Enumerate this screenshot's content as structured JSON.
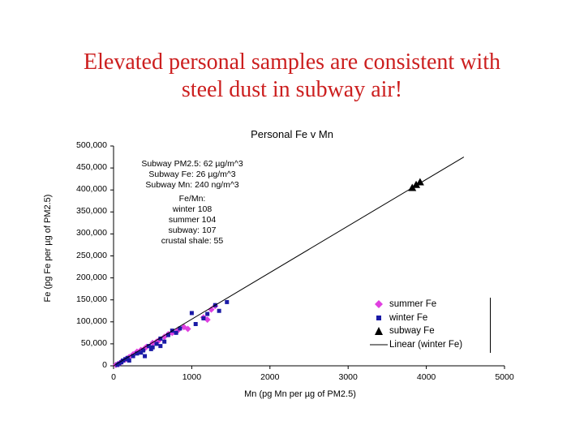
{
  "slide": {
    "title_line1": "Elevated personal samples are consistent with",
    "title_line2": "steel dust in subway air!"
  },
  "chart_data": {
    "type": "scatter",
    "title": "Personal Fe v Mn",
    "xlabel": "Mn (pg Mn per µg of PM2.5)",
    "ylabel": "Fe (pg Fe per µg of PM2.5)",
    "xlim": [
      0,
      5000
    ],
    "ylim": [
      0,
      500000
    ],
    "x_ticks": [
      "0",
      "1000",
      "2000",
      "3000",
      "4000",
      "5000"
    ],
    "y_ticks": [
      "0",
      "50,000",
      "100,000",
      "150,000",
      "200,000",
      "250,000",
      "300,000",
      "350,000",
      "400,000",
      "450,000",
      "500,000"
    ],
    "grid": false,
    "series": [
      {
        "name": "summer Fe",
        "marker": "diamond",
        "color": "#e040e0",
        "points": [
          [
            30,
            2000
          ],
          [
            60,
            4000
          ],
          [
            80,
            6000
          ],
          [
            100,
            9000
          ],
          [
            150,
            14000
          ],
          [
            200,
            20000
          ],
          [
            250,
            26000
          ],
          [
            300,
            32000
          ],
          [
            350,
            36000
          ],
          [
            420,
            43000
          ],
          [
            500,
            52000
          ],
          [
            580,
            58000
          ],
          [
            650,
            66000
          ],
          [
            750,
            75000
          ],
          [
            820,
            80000
          ],
          [
            900,
            88000
          ],
          [
            950,
            84000
          ],
          [
            1150,
            110000
          ],
          [
            1200,
            105000
          ],
          [
            1250,
            128000
          ],
          [
            1300,
            136000
          ],
          [
            400,
            40000
          ],
          [
            700,
            72000
          ],
          [
            550,
            55000
          ]
        ]
      },
      {
        "name": "winter Fe",
        "marker": "square",
        "color": "#1a1aa6",
        "points": [
          [
            50,
            2000
          ],
          [
            70,
            5000
          ],
          [
            100,
            8000
          ],
          [
            120,
            12000
          ],
          [
            150,
            15000
          ],
          [
            180,
            18000
          ],
          [
            200,
            12000
          ],
          [
            250,
            22000
          ],
          [
            300,
            28000
          ],
          [
            380,
            35000
          ],
          [
            400,
            22000
          ],
          [
            450,
            45000
          ],
          [
            500,
            42000
          ],
          [
            550,
            50000
          ],
          [
            600,
            62000
          ],
          [
            650,
            55000
          ],
          [
            700,
            70000
          ],
          [
            750,
            80000
          ],
          [
            800,
            75000
          ],
          [
            850,
            85000
          ],
          [
            1000,
            120000
          ],
          [
            1050,
            95000
          ],
          [
            1150,
            108000
          ],
          [
            1200,
            118000
          ],
          [
            1350,
            125000
          ],
          [
            1300,
            138000
          ],
          [
            1450,
            145000
          ],
          [
            600,
            45000
          ],
          [
            350,
            30000
          ],
          [
            480,
            38000
          ]
        ]
      },
      {
        "name": "subway Fe",
        "marker": "triangle",
        "color": "#000000",
        "points": [
          [
            3820,
            405000
          ],
          [
            3870,
            412000
          ],
          [
            3920,
            418000
          ]
        ]
      },
      {
        "name": "Linear (winter Fe)",
        "type": "line",
        "color": "#000000",
        "x": [
          0,
          4480
        ],
        "y": [
          0,
          475000
        ]
      }
    ],
    "legend": {
      "position": "bottom-right",
      "entries": [
        "summer Fe",
        "winter Fe",
        "subway Fe",
        "Linear (winter Fe)"
      ]
    },
    "annotations": {
      "block1": [
        "Subway PM2.5: 62 µg/m^3",
        "Subway Fe: 26 µg/m^3",
        "Subway Mn: 240 ng/m^3"
      ],
      "block2": [
        "Fe/Mn:",
        "winter 108",
        "summer 104",
        "subway: 107",
        "crustal shale: 55"
      ]
    }
  }
}
